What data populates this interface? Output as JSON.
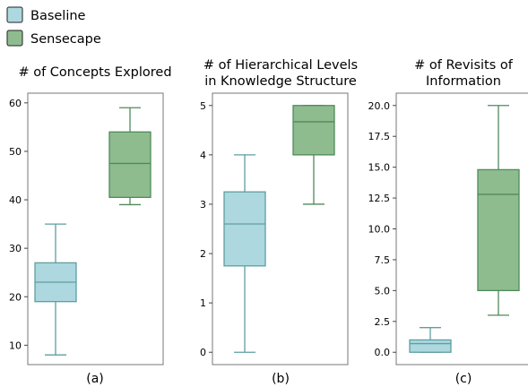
{
  "legend": [
    {
      "label": "Baseline",
      "fill": "#add8e0",
      "stroke": "#5f9ea0"
    },
    {
      "label": "Sensecape",
      "fill": "#8fbc8f",
      "stroke": "#4f8a5b"
    }
  ],
  "chart_data": [
    {
      "type": "box",
      "panel_label": "(a)",
      "title_lines": [
        "# of Concepts Explored"
      ],
      "ylim": [
        6,
        62
      ],
      "yticks": [
        10,
        20,
        30,
        40,
        50,
        60
      ],
      "ytick_labels": [
        "10",
        "20",
        "30",
        "40",
        "50",
        "60"
      ],
      "series": [
        {
          "name": "Baseline",
          "whisker_low": 8,
          "q1": 19,
          "median": 23,
          "q3": 27,
          "whisker_high": 35
        },
        {
          "name": "Sensecape",
          "whisker_low": 39,
          "q1": 40.5,
          "median": 47.5,
          "q3": 54,
          "whisker_high": 59
        }
      ]
    },
    {
      "type": "box",
      "panel_label": "(b)",
      "title_lines": [
        "# of Hierarchical Levels",
        "in Knowledge Structure"
      ],
      "ylim": [
        -0.25,
        5.25
      ],
      "yticks": [
        0,
        1,
        2,
        3,
        4,
        5
      ],
      "ytick_labels": [
        "0",
        "1",
        "2",
        "3",
        "4",
        "5"
      ],
      "series": [
        {
          "name": "Baseline",
          "whisker_low": 0,
          "q1": 1.75,
          "median": 2.6,
          "q3": 3.25,
          "whisker_high": 4
        },
        {
          "name": "Sensecape",
          "whisker_low": 3,
          "q1": 4,
          "median": 4.67,
          "q3": 5,
          "whisker_high": 5
        }
      ]
    },
    {
      "type": "box",
      "panel_label": "(c)",
      "title_lines": [
        "# of Revisits of",
        "Information"
      ],
      "ylim": [
        -1,
        21
      ],
      "yticks": [
        0,
        2.5,
        5,
        7.5,
        10,
        12.5,
        15,
        17.5,
        20
      ],
      "ytick_labels": [
        "0.0",
        "2.5",
        "5.0",
        "7.5",
        "10.0",
        "12.5",
        "15.0",
        "17.5",
        "20.0"
      ],
      "series": [
        {
          "name": "Baseline",
          "whisker_low": 0,
          "q1": 0,
          "median": 0.7,
          "q3": 1,
          "whisker_high": 2
        },
        {
          "name": "Sensecape",
          "whisker_low": 3,
          "q1": 5,
          "median": 12.8,
          "q3": 14.8,
          "whisker_high": 20
        }
      ]
    }
  ]
}
